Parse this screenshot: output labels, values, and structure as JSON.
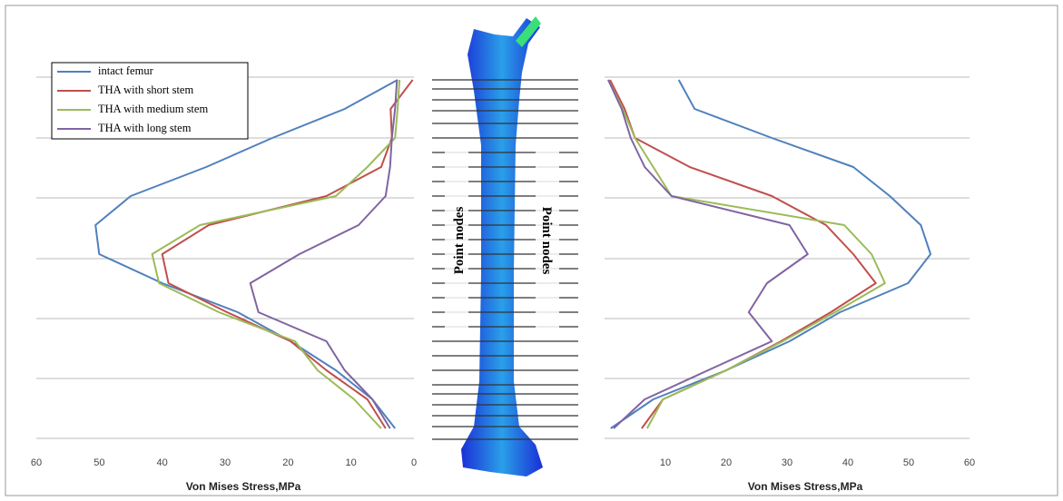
{
  "chart_data": [
    {
      "type": "line",
      "orientation": "horizontal-values",
      "xlim": [
        60,
        0
      ],
      "xticks": [
        60,
        50,
        40,
        30,
        20,
        10,
        0
      ],
      "x_label": "Von Mises Stress,MPa",
      "legend": "upper left",
      "categories": [
        null,
        null,
        null,
        null,
        null,
        null,
        null,
        null,
        null,
        null,
        null,
        null,
        null
      ],
      "series": [
        {
          "name": "intact femur",
          "color": "#4f81bd",
          "values": [
            2.6,
            11,
            22.5,
            33,
            45,
            50.6,
            50,
            40,
            28,
            19.6,
            12.4,
            6.6,
            3
          ]
        },
        {
          "name": "THA with short stem",
          "color": "#c0504d",
          "values": [
            0.2,
            3.7,
            3.5,
            5.2,
            13.9,
            32.6,
            40,
            39,
            29.7,
            19.6,
            13.9,
            7.4,
            4.5
          ]
        },
        {
          "name": "THA with medium stem",
          "color": "#9bbb59",
          "values": [
            2.3,
            2.6,
            3,
            7.4,
            12.4,
            34,
            41.6,
            40.5,
            31,
            18.9,
            15.3,
            9.5,
            5.2
          ]
        },
        {
          "name": "THA with long stem",
          "color": "#8064a2",
          "values": [
            2.7,
            3,
            3.5,
            3.8,
            4.5,
            8.8,
            18.2,
            26,
            24.7,
            13.9,
            11,
            6.6,
            3.8
          ]
        }
      ]
    },
    {
      "type": "line",
      "orientation": "horizontal-values",
      "xlim": [
        0,
        60
      ],
      "xticks": [
        10,
        20,
        30,
        40,
        50,
        60
      ],
      "x_label": "Von Mises Stress,MPa",
      "categories": [
        null,
        null,
        null,
        null,
        null,
        null,
        null,
        null,
        null,
        null,
        null,
        null,
        null
      ],
      "series": [
        {
          "color": "#4f81bd",
          "values": [
            12.2,
            14.8,
            27.5,
            40.9,
            46.9,
            52,
            53.6,
            49.9,
            38.7,
            30.4,
            20,
            8,
            1
          ]
        },
        {
          "color": "#c0504d",
          "values": [
            0.9,
            3.3,
            5,
            14,
            27.5,
            36.4,
            40.9,
            44.6,
            37.2,
            29,
            20,
            9.6,
            6.1
          ]
        },
        {
          "color": "#9bbb59",
          "values": [
            0.6,
            3,
            5,
            8,
            11,
            39.4,
            43.9,
            46.1,
            37.9,
            29.3,
            20,
            9.6,
            7
          ]
        },
        {
          "color": "#8064a2",
          "values": [
            0.6,
            2.8,
            4.3,
            6.6,
            11,
            30.4,
            33.4,
            26.7,
            23.7,
            27.5,
            17,
            6.6,
            1.5
          ]
        }
      ]
    }
  ],
  "point_node_labels": [
    "Point nodes",
    "Point nodes"
  ]
}
